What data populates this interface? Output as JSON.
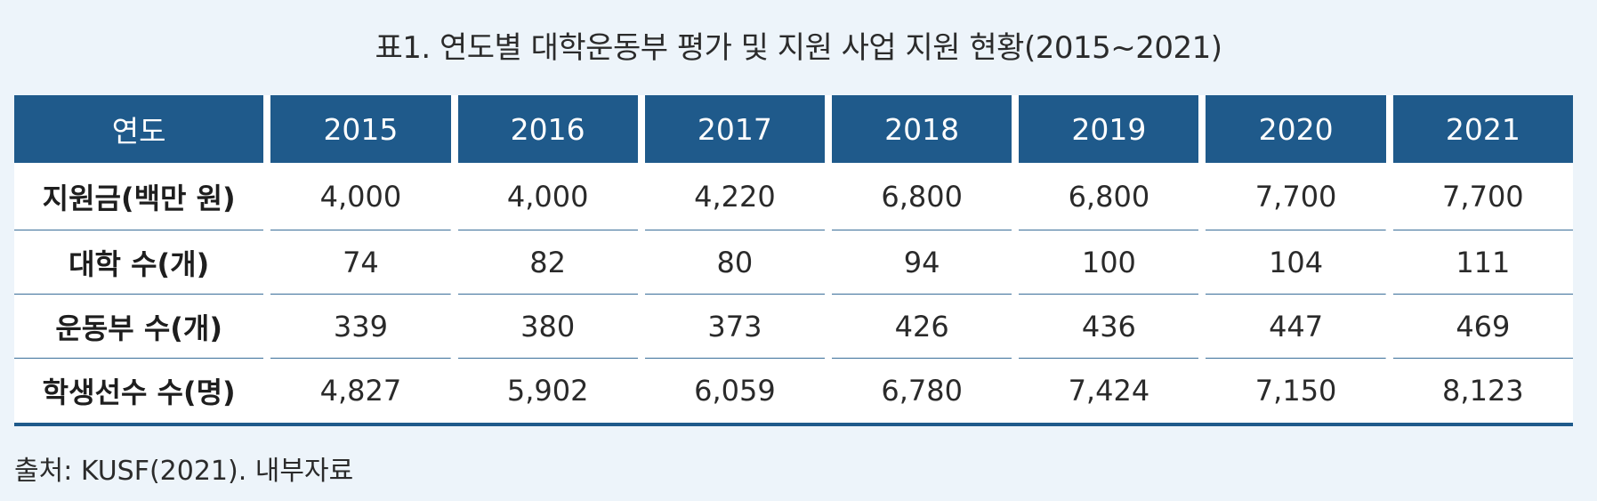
{
  "title": "표1. 연도별 대학운동부 평가 및 지원 사업 지원 현황(2015~2021)",
  "table": {
    "header": {
      "label": "연도",
      "years": [
        "2015",
        "2016",
        "2017",
        "2018",
        "2019",
        "2020",
        "2021"
      ]
    },
    "rows": [
      {
        "label": "지원금(백만 원)",
        "values": [
          "4,000",
          "4,000",
          "4,220",
          "6,800",
          "6,800",
          "7,700",
          "7,700"
        ]
      },
      {
        "label": "대학 수(개)",
        "values": [
          "74",
          "82",
          "80",
          "94",
          "100",
          "104",
          "111"
        ]
      },
      {
        "label": "운동부 수(개)",
        "values": [
          "339",
          "380",
          "373",
          "426",
          "436",
          "447",
          "469"
        ]
      },
      {
        "label": "학생선수 수(명)",
        "values": [
          "4,827",
          "5,902",
          "6,059",
          "6,780",
          "7,424",
          "7,150",
          "8,123"
        ]
      }
    ]
  },
  "source": "출처: KUSF(2021). 내부자료",
  "colors": {
    "header_bg": "#1f5a8b",
    "header_text": "#ffffff",
    "page_bg": "#edf4fa",
    "row_divider": "#3a6f99"
  }
}
